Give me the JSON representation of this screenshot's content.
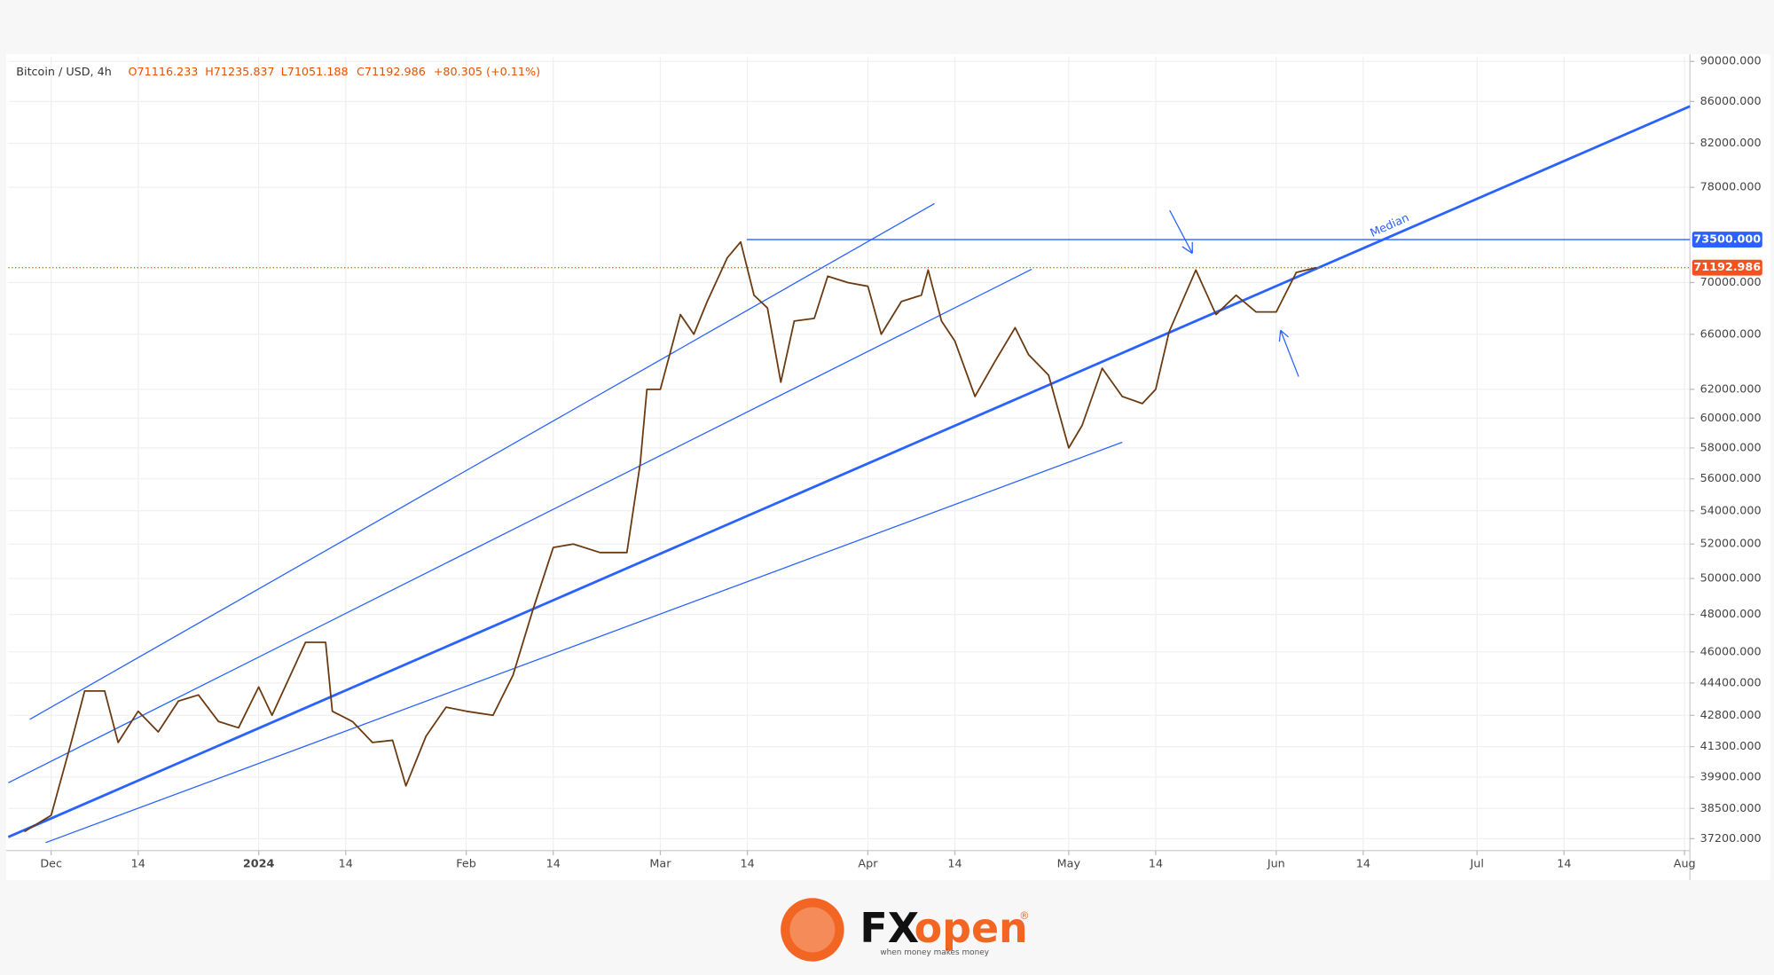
{
  "chart_data": {
    "type": "line",
    "header": {
      "symbol": "Bitcoin / USD, 4h",
      "open": "O71116.233",
      "high": "H71235.837",
      "low": "L71051.188",
      "close": "C71192.986",
      "change": "+80.305 (+0.11%)"
    },
    "log_scale": true,
    "grid": true,
    "x": [
      -4,
      0,
      3,
      5,
      8,
      10,
      13,
      16,
      19,
      22,
      25,
      28,
      31,
      33,
      38,
      41,
      42,
      45,
      48,
      51,
      53,
      56,
      59,
      62,
      66,
      69,
      72,
      75,
      78,
      82,
      86,
      88,
      89,
      91,
      94,
      96,
      98,
      101,
      103,
      105,
      107,
      109,
      111,
      114,
      116,
      119,
      122,
      124,
      127,
      130,
      131,
      133,
      135,
      138,
      141,
      144,
      146,
      149,
      152,
      154,
      157,
      160,
      163,
      165,
      167,
      171,
      174,
      177,
      180,
      183,
      186,
      189
    ],
    "series": [
      {
        "color": "#6b3a10",
        "values": [
          37500,
          38200,
          41500,
          44000,
          44000,
          41500,
          43000,
          42000,
          43500,
          43800,
          42500,
          42200,
          44200,
          42800,
          46500,
          46500,
          43000,
          42500,
          41500,
          41600,
          39500,
          41800,
          43200,
          43000,
          42800,
          44800,
          48300,
          51800,
          52000,
          51500,
          51500,
          57000,
          62000,
          62000,
          67500,
          66000,
          68500,
          72000,
          73300,
          69000,
          68000,
          62500,
          67000,
          67200,
          70500,
          70000,
          69700,
          66000,
          68500,
          69000,
          71000,
          67000,
          65500,
          61500,
          64000,
          66500,
          64500,
          63000,
          58000,
          59500,
          63500,
          61500,
          61000,
          62000,
          66200,
          71000,
          67500,
          69000,
          67700,
          67700,
          70800,
          71192.986
        ]
      }
    ],
    "xlim": [
      -6.4,
      244.8
    ],
    "xticks": [
      {
        "value": 0,
        "label": "Dec"
      },
      {
        "value": 13,
        "label": "14"
      },
      {
        "value": 31,
        "label": "2024"
      },
      {
        "value": 44,
        "label": "14"
      },
      {
        "value": 62,
        "label": "Feb"
      },
      {
        "value": 75,
        "label": "14"
      },
      {
        "value": 91,
        "label": "Mar"
      },
      {
        "value": 104,
        "label": "14"
      },
      {
        "value": 122,
        "label": "Apr"
      },
      {
        "value": 135,
        "label": "14"
      },
      {
        "value": 152,
        "label": "May"
      },
      {
        "value": 165,
        "label": "14"
      },
      {
        "value": 183,
        "label": "Jun"
      },
      {
        "value": 196,
        "label": "14"
      },
      {
        "value": 213,
        "label": "Jul"
      },
      {
        "value": 226,
        "label": "14"
      },
      {
        "value": 244,
        "label": "Aug"
      }
    ],
    "ylim": [
      36700,
      90500
    ],
    "yticks": [
      {
        "value": 37200,
        "label": "37200.000"
      },
      {
        "value": 38500,
        "label": "38500.000"
      },
      {
        "value": 39900,
        "label": "39900.000"
      },
      {
        "value": 41300,
        "label": "41300.000"
      },
      {
        "value": 42800,
        "label": "42800.000"
      },
      {
        "value": 44400,
        "label": "44400.000"
      },
      {
        "value": 46000,
        "label": "46000.000"
      },
      {
        "value": 48000,
        "label": "48000.000"
      },
      {
        "value": 50000,
        "label": "50000.000"
      },
      {
        "value": 52000,
        "label": "52000.000"
      },
      {
        "value": 54000,
        "label": "54000.000"
      },
      {
        "value": 56000,
        "label": "56000.000"
      },
      {
        "value": 58000,
        "label": "58000.000"
      },
      {
        "value": 60000,
        "label": "60000.000"
      },
      {
        "value": 62000,
        "label": "62000.000"
      },
      {
        "value": 66000,
        "label": "66000.000"
      },
      {
        "value": 70000,
        "label": "70000.000"
      },
      {
        "value": 78000,
        "label": "78000.000"
      },
      {
        "value": 82000,
        "label": "82000.000"
      },
      {
        "value": 86000,
        "label": "86000.000"
      },
      {
        "value": 90000,
        "label": "90000.000"
      }
    ],
    "level": {
      "value": 73500,
      "label": "73500.000",
      "color": "#2962ff"
    },
    "last_price": {
      "value": 71192.986,
      "label": "71192.986",
      "color": "#f4511e"
    },
    "annotation": "Median"
  },
  "logo": {
    "brand_fx": "FX",
    "brand_open": "open",
    "registered": "®",
    "tagline": "when money makes money"
  }
}
